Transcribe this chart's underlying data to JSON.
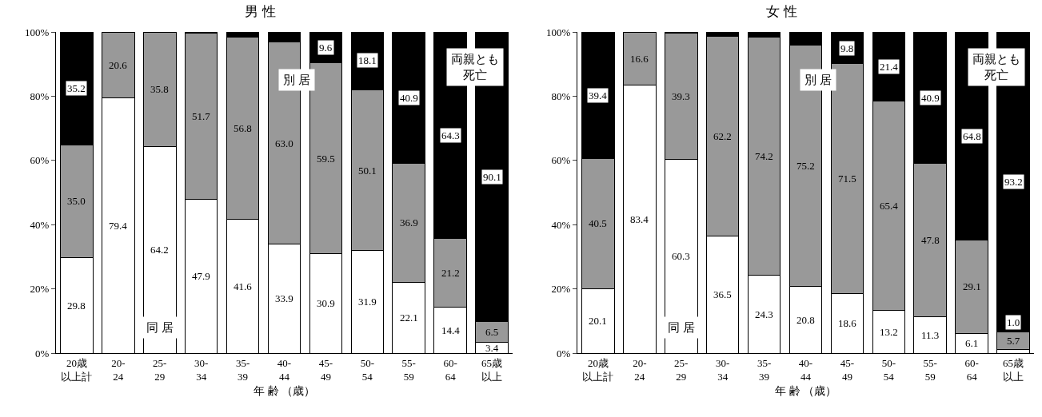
{
  "chart_data": [
    {
      "type": "bar",
      "title": "男 性",
      "xlabel": "年 齢 （歳）",
      "stacked": true,
      "grid": false,
      "data_labels": true,
      "categories": [
        "20歳以上計",
        "20-24",
        "25-29",
        "30-34",
        "35-39",
        "40-44",
        "45-49",
        "50-54",
        "55-59",
        "60-64",
        "65歳以上"
      ],
      "ylim": [
        0,
        100
      ],
      "yticks": [
        {
          "value": 0,
          "label": "0%"
        },
        {
          "value": 20,
          "label": "20%"
        },
        {
          "value": 40,
          "label": "40%"
        },
        {
          "value": 60,
          "label": "60%"
        },
        {
          "value": 80,
          "label": "80%"
        },
        {
          "value": 100,
          "label": "100%"
        }
      ],
      "series": [
        {
          "name": "同 居",
          "color": "#ffffff",
          "values": [
            29.8,
            79.4,
            64.2,
            47.9,
            41.6,
            33.9,
            30.9,
            31.9,
            22.1,
            14.4,
            3.4
          ],
          "value_labels": [
            "29.8",
            "79.4",
            "64.2",
            "47.9",
            "41.6",
            "33.9",
            "30.9",
            "31.9",
            "22.1",
            "14.4",
            "3.4"
          ]
        },
        {
          "name": "別 居",
          "color": "#999999",
          "values": [
            35.0,
            20.6,
            35.8,
            51.7,
            56.8,
            63.0,
            59.5,
            50.1,
            36.9,
            21.2,
            6.5
          ],
          "value_labels": [
            "35.0",
            "20.6",
            "35.8",
            "51.7",
            "56.8",
            "63.0",
            "59.5",
            "50.1",
            "36.9",
            "21.2",
            "6.5"
          ]
        },
        {
          "name": "両親とも死亡",
          "color": "#000000",
          "values": [
            35.2,
            0,
            0,
            0.4,
            1.6,
            3.1,
            9.6,
            18.1,
            40.9,
            64.3,
            90.1
          ],
          "value_labels": [
            "35.2",
            null,
            null,
            null,
            null,
            null,
            "9.6",
            "18.1",
            "40.9",
            "64.3",
            "90.1"
          ]
        }
      ]
    },
    {
      "type": "bar",
      "title": "女 性",
      "xlabel": "年 齢 （歳）",
      "stacked": true,
      "grid": false,
      "data_labels": true,
      "categories": [
        "20歳以上計",
        "20-24",
        "25-29",
        "30-34",
        "35-39",
        "40-44",
        "45-49",
        "50-54",
        "55-59",
        "60-64",
        "65歳以上"
      ],
      "ylim": [
        0,
        100
      ],
      "yticks": [
        {
          "value": 0,
          "label": "0%"
        },
        {
          "value": 20,
          "label": "20%"
        },
        {
          "value": 40,
          "label": "40%"
        },
        {
          "value": 60,
          "label": "60%"
        },
        {
          "value": 80,
          "label": "80%"
        },
        {
          "value": 100,
          "label": "100%"
        }
      ],
      "series": [
        {
          "name": "同 居",
          "color": "#ffffff",
          "values": [
            20.1,
            83.4,
            60.3,
            36.5,
            24.3,
            20.8,
            18.6,
            13.2,
            11.3,
            6.1,
            1.0
          ],
          "value_labels": [
            "20.1",
            "83.4",
            "60.3",
            "36.5",
            "24.3",
            "20.8",
            "18.6",
            "13.2",
            "11.3",
            "6.1",
            "1.0"
          ]
        },
        {
          "name": "別 居",
          "color": "#999999",
          "values": [
            40.5,
            16.6,
            39.3,
            62.2,
            74.2,
            75.2,
            71.5,
            65.4,
            47.8,
            29.1,
            5.7
          ],
          "value_labels": [
            "40.5",
            "16.6",
            "39.3",
            "62.2",
            "74.2",
            "75.2",
            "71.5",
            "65.4",
            "47.8",
            "29.1",
            "5.7"
          ]
        },
        {
          "name": "両親とも死亡",
          "color": "#000000",
          "values": [
            39.4,
            0,
            0.4,
            1.3,
            1.5,
            4.0,
            9.8,
            21.4,
            40.9,
            64.8,
            93.2
          ],
          "value_labels": [
            "39.4",
            null,
            null,
            null,
            null,
            null,
            "9.8",
            "21.4",
            "40.9",
            "64.8",
            "93.2"
          ]
        }
      ]
    }
  ]
}
